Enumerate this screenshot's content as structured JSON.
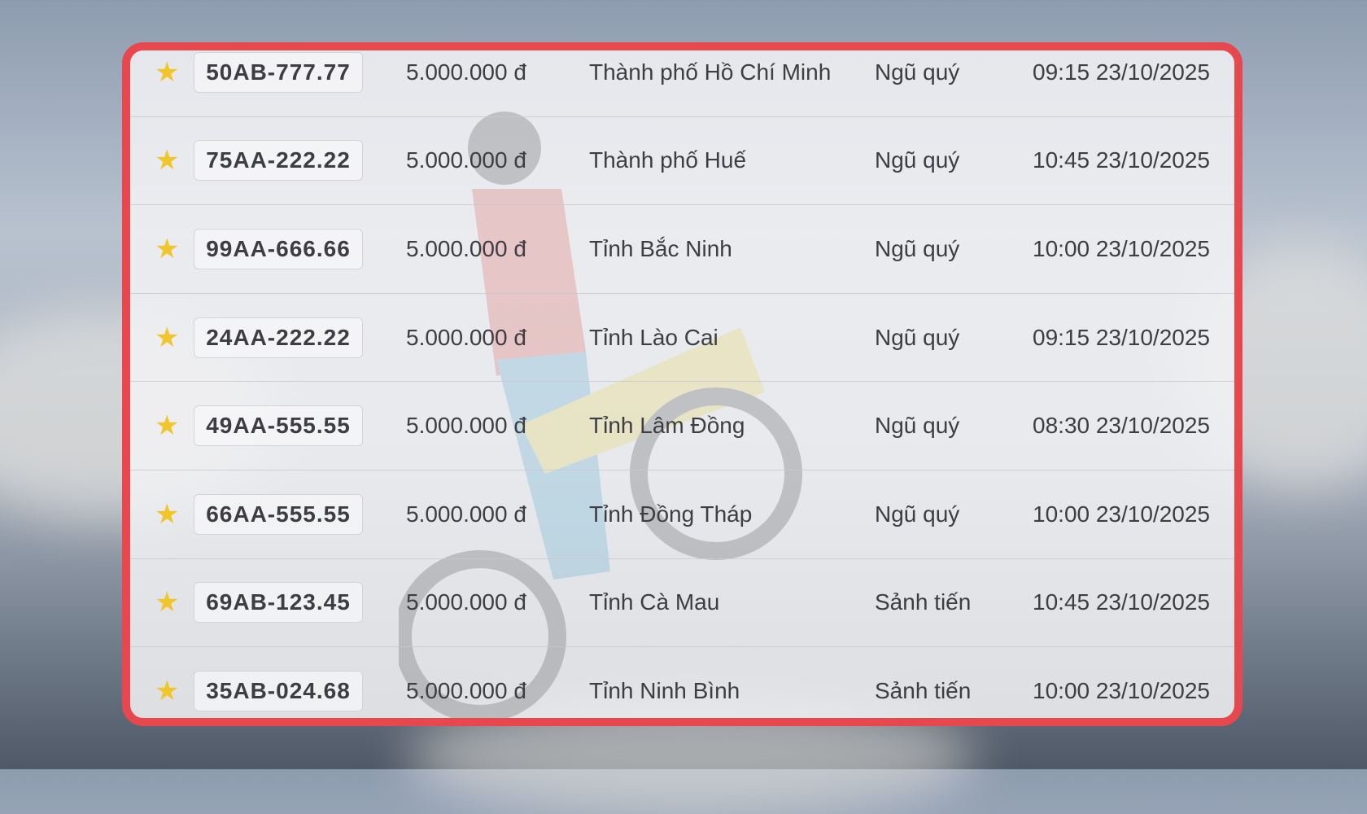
{
  "colors": {
    "frame": "#e6484d",
    "star": "#f1c62c"
  },
  "rows": [
    {
      "icon": "star-icon",
      "plate": "50AB-777.77",
      "price": "5.000.000 đ",
      "location": "Thành phố Hồ Chí Minh",
      "type": "Ngũ quý",
      "time": "09:15 23/10/2025"
    },
    {
      "icon": "star-icon",
      "plate": "75AA-222.22",
      "price": "5.000.000 đ",
      "location": "Thành phố Huế",
      "type": "Ngũ quý",
      "time": "10:45 23/10/2025"
    },
    {
      "icon": "star-icon",
      "plate": "99AA-666.66",
      "price": "5.000.000 đ",
      "location": "Tỉnh Bắc Ninh",
      "type": "Ngũ quý",
      "time": "10:00 23/10/2025"
    },
    {
      "icon": "star-icon",
      "plate": "24AA-222.22",
      "price": "5.000.000 đ",
      "location": "Tỉnh Lào Cai",
      "type": "Ngũ quý",
      "time": "09:15 23/10/2025"
    },
    {
      "icon": "star-icon",
      "plate": "49AA-555.55",
      "price": "5.000.000 đ",
      "location": "Tỉnh Lâm Đồng",
      "type": "Ngũ quý",
      "time": "08:30 23/10/2025"
    },
    {
      "icon": "star-icon",
      "plate": "66AA-555.55",
      "price": "5.000.000 đ",
      "location": "Tỉnh Đồng Tháp",
      "type": "Ngũ quý",
      "time": "10:00 23/10/2025"
    },
    {
      "icon": "star-icon",
      "plate": "69AB-123.45",
      "price": "5.000.000 đ",
      "location": "Tỉnh Cà Mau",
      "type": "Sảnh tiến",
      "time": "10:45 23/10/2025"
    },
    {
      "icon": "star-icon",
      "plate": "35AB-024.68",
      "price": "5.000.000 đ",
      "location": "Tỉnh Ninh Bình",
      "type": "Sảnh tiến",
      "time": "10:00 23/10/2025"
    }
  ]
}
